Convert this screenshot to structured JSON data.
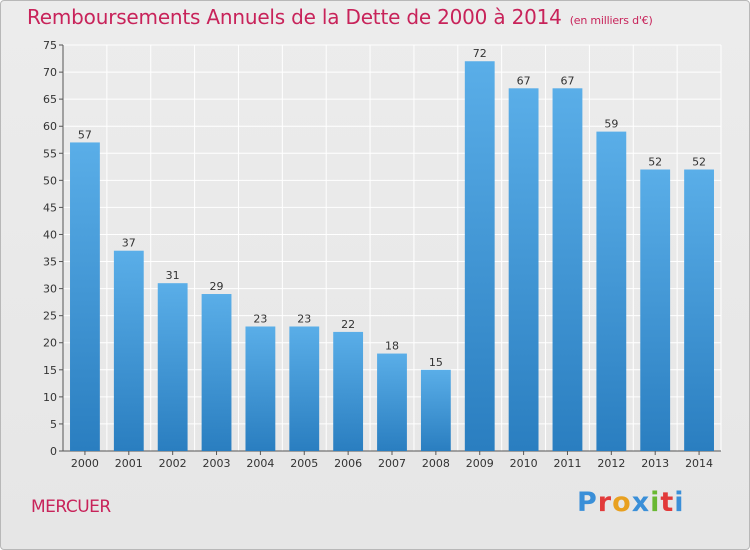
{
  "header": {
    "title": "Remboursements Annuels de la Dette de 2000 à 2014",
    "subtitle": "(en milliers d'€)"
  },
  "footer": {
    "city": "MERCUER",
    "logo": "Proxiti"
  },
  "colors": {
    "title": "#c8235a",
    "bar_top": "#5aaee8",
    "bar_bottom": "#2a7ec0",
    "grid": "#ffffff",
    "logo_letters": [
      "#3a8fd8",
      "#e23a3a",
      "#e8a020",
      "#3a8fd8",
      "#69b832",
      "#e23a3a",
      "#3a8fd8"
    ]
  },
  "chart_data": {
    "type": "bar",
    "title": "Remboursements Annuels de la Dette de 2000 à 2014",
    "subtitle": "(en milliers d'€)",
    "xlabel": "",
    "ylabel": "",
    "categories": [
      "2000",
      "2001",
      "2002",
      "2003",
      "2004",
      "2005",
      "2006",
      "2007",
      "2008",
      "2009",
      "2010",
      "2011",
      "2012",
      "2013",
      "2014"
    ],
    "values": [
      57,
      37,
      31,
      29,
      23,
      23,
      22,
      18,
      15,
      72,
      67,
      67,
      59,
      52,
      52
    ],
    "ylim": [
      0,
      75
    ],
    "yticks": [
      0,
      5,
      10,
      15,
      20,
      25,
      30,
      35,
      40,
      45,
      50,
      55,
      60,
      65,
      70,
      75
    ],
    "grid": true,
    "legend": "none"
  }
}
